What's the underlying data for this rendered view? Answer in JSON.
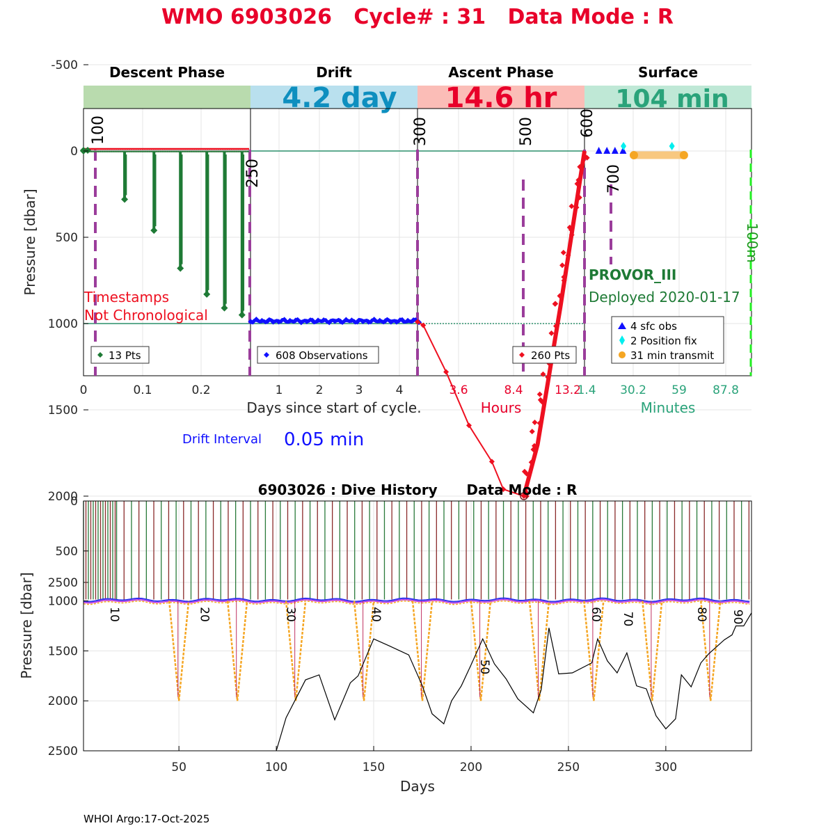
{
  "main_title": "WMO 6903026   Cycle# : 31   Data Mode : R",
  "colors": {
    "title_red": "#e8002a",
    "descent_green": "#1e7a35",
    "drift_blue": "#1010ff",
    "ascent_red": "#ee1020",
    "surface_teal": "#2aa37a",
    "phase_descent_bg": "#b9dbae",
    "phase_drift_bg": "#b9e0ee",
    "phase_ascent_bg": "#fbbdb7",
    "phase_surface_bg": "#bfe8d6",
    "purple_dash": "#9b3d9b",
    "orange": "#f5a623"
  },
  "top_panel": {
    "phases": [
      {
        "title": "Descent Phase",
        "value": ""
      },
      {
        "title": "Drift",
        "value": "4.2 day"
      },
      {
        "title": "Ascent Phase",
        "value": "14.6 hr"
      },
      {
        "title": "Surface",
        "value": "104 min"
      }
    ],
    "ylabel": "Pressure [dbar]",
    "y_ticks": [
      "-500",
      "0",
      "500",
      "1000",
      "1500",
      "2000",
      "2500"
    ],
    "descent_ticks": [
      "0",
      "0.1",
      "0.2"
    ],
    "drift_ticks": [
      "1",
      "2",
      "3",
      "4"
    ],
    "ascent_ticks": [
      "3.6",
      "8.4",
      "13.2"
    ],
    "surface_ticks": [
      "1.4",
      "30.2",
      "59",
      "87.8"
    ],
    "xlabel_days": "Days since start of cycle.",
    "xlabel_hours": "Hours",
    "xlabel_minutes": "Minutes",
    "vertical_markers": [
      "100",
      "250",
      "300",
      "500",
      "600",
      "700"
    ],
    "timestamp_warning_line1": "Timestamps",
    "timestamp_warning_line2": "Not Chronological",
    "descent_legend": "13 Pts",
    "drift_legend": "608 Observations",
    "ascent_legend": "260 Pts",
    "float_type": "PROVOR_III",
    "deployed": "Deployed 2020-01-17",
    "surface_legend": [
      "4 sfc obs",
      "2 Position fix",
      "31 min transmit"
    ],
    "depth_marker_100m": "100m",
    "drift_interval_label": "Drift Interval",
    "drift_interval_value": "0.05 min"
  },
  "chart_data": [
    {
      "type": "scatter",
      "title": "WMO 6903026   Cycle# : 31   Data Mode : R",
      "ylabel": "Pressure [dbar]",
      "ylim": [
        -750,
        2600
      ],
      "y_reversed": true,
      "series": [
        {
          "name": "13 Pts",
          "phase": "descent",
          "x_days": [
            0,
            0.07,
            0.12,
            0.165,
            0.21,
            0.24,
            0.27
          ],
          "y": [
            0,
            280,
            460,
            680,
            830,
            910,
            950
          ]
        },
        {
          "name": "608 Observations",
          "phase": "drift",
          "x_days": [
            0.3,
            1,
            2,
            3,
            4,
            4.5
          ],
          "y": [
            985,
            985,
            985,
            980,
            985,
            985
          ]
        },
        {
          "name": "260 Pts",
          "phase": "ascent",
          "x_hours": [
            0,
            0.5,
            2.5,
            4.5,
            6.5,
            7.5,
            9.3,
            10.5,
            12.5,
            14.6
          ],
          "y": [
            990,
            1010,
            1280,
            1590,
            1800,
            1960,
            2000,
            1700,
            900,
            0
          ]
        }
      ],
      "surface": {
        "sfc_obs_minutes": [
          5,
          10,
          15,
          20
        ],
        "position_fix_minutes": [
          22,
          52
        ],
        "transmit_minutes": [
          28,
          59
        ]
      }
    },
    {
      "type": "line",
      "title": "6903026 : Dive History      Data Mode : R",
      "xlabel": "Days",
      "ylabel": "Pressure [dbar]",
      "xlim": [
        1,
        344
      ],
      "ylim": [
        0,
        2500
      ],
      "y_reversed": true,
      "x_ticks": [
        50,
        100,
        150,
        200,
        250,
        300
      ],
      "y_ticks": [
        0,
        500,
        1000,
        1500,
        2000,
        2500
      ],
      "cycle_labels": [
        "10",
        "20",
        "30",
        "40",
        "50",
        "60",
        "70",
        "80",
        "90"
      ],
      "profile_days": [
        50,
        80,
        110,
        145,
        175,
        205,
        235,
        263,
        293,
        323
      ],
      "bathymetry": {
        "x": [
          100,
          105,
          115,
          122,
          130,
          138,
          142,
          150,
          158,
          168,
          175,
          180,
          186,
          190,
          195,
          200,
          206,
          212,
          218,
          224,
          232,
          236,
          240,
          245,
          252,
          262,
          265,
          270,
          275,
          280,
          285,
          290,
          295,
          300,
          305,
          308,
          313,
          318,
          322,
          326,
          330,
          334,
          336,
          340,
          344
        ],
        "y": [
          2500,
          2170,
          1790,
          1740,
          2190,
          1820,
          1750,
          1380,
          1450,
          1540,
          1850,
          2130,
          2230,
          2000,
          1850,
          1640,
          1380,
          1630,
          1780,
          1980,
          2120,
          1890,
          1270,
          1730,
          1720,
          1620,
          1380,
          1600,
          1720,
          1520,
          1850,
          1880,
          2150,
          2280,
          2180,
          1740,
          1860,
          1620,
          1530,
          1460,
          1390,
          1340,
          1250,
          1250,
          1120
        ]
      }
    }
  ],
  "footer": "WHOI Argo:17-Oct-2025"
}
